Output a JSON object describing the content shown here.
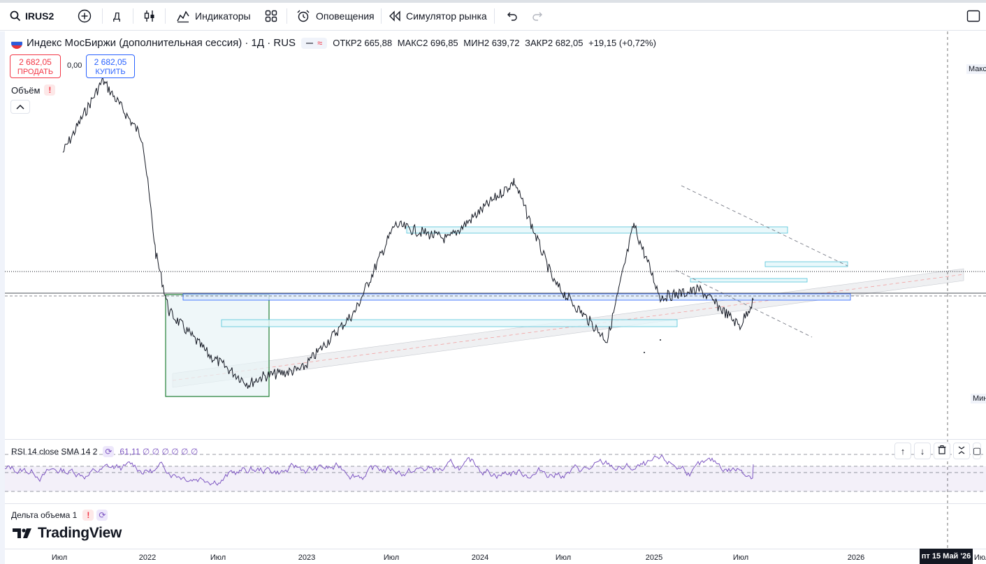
{
  "toolbar": {
    "symbol": "IRUS2",
    "interval": "Д",
    "indicators_label": "Индикаторы",
    "alerts_label": "Оповещения",
    "replay_label": "Симулятор рынка"
  },
  "legend": {
    "title": "Индекс МосБиржи (дополнительная сессия) · 1Д · RUS",
    "open_key": "ОТКР",
    "open": "2 665,88",
    "high_key": "МАКС",
    "high": "2 696,85",
    "low_key": "МИН",
    "low": "2 639,72",
    "close_key": "ЗАКР",
    "close": "2 682,05",
    "change": "+19,15 (+0,72%)"
  },
  "trade": {
    "sell_price": "2 682,05",
    "sell_label": "ПРОДАТЬ",
    "spread": "0,00",
    "buy_price": "2 682,05",
    "buy_label": "КУПИТЬ"
  },
  "volume": {
    "label": "Объём",
    "warn": "!"
  },
  "rsi": {
    "label": "RSI 14 close SMA 14 2",
    "values": "61,11 ∅ ∅ ∅ ∅ ∅ ∅"
  },
  "delta": {
    "label": "Дельта объема 1",
    "warn": "!"
  },
  "logo": "TradingView",
  "price_axis": {
    "max_label": "Макс",
    "min_label": "Мин"
  },
  "time_axis": {
    "ticks": [
      "Июл",
      "2022",
      "Июл",
      "2023",
      "Июл",
      "2024",
      "Июл",
      "2025",
      "Июл",
      "2026",
      "Июл"
    ],
    "cursor": "пт 15 Май '26"
  },
  "chart_data": {
    "type": "line",
    "series": [
      {
        "name": "Индекс МосБиржи",
        "x": [
          "2021-07",
          "2021-10",
          "2022-01",
          "2022-02",
          "2022-03",
          "2022-06",
          "2022-09",
          "2022-10",
          "2023-01",
          "2023-05",
          "2023-08",
          "2023-12",
          "2024-05",
          "2024-08",
          "2024-12",
          "2025-02",
          "2025-04",
          "2025-07",
          "2025-10",
          "2025-11"
        ],
        "y": [
          3700,
          4200,
          3800,
          3000,
          2600,
          2300,
          2100,
          2150,
          2200,
          2600,
          3200,
          3100,
          3500,
          2800,
          2400,
          3200,
          2700,
          2750,
          2500,
          2680
        ]
      }
    ],
    "rsi": {
      "upper": 70,
      "lower": 30,
      "last": 61.11
    }
  }
}
